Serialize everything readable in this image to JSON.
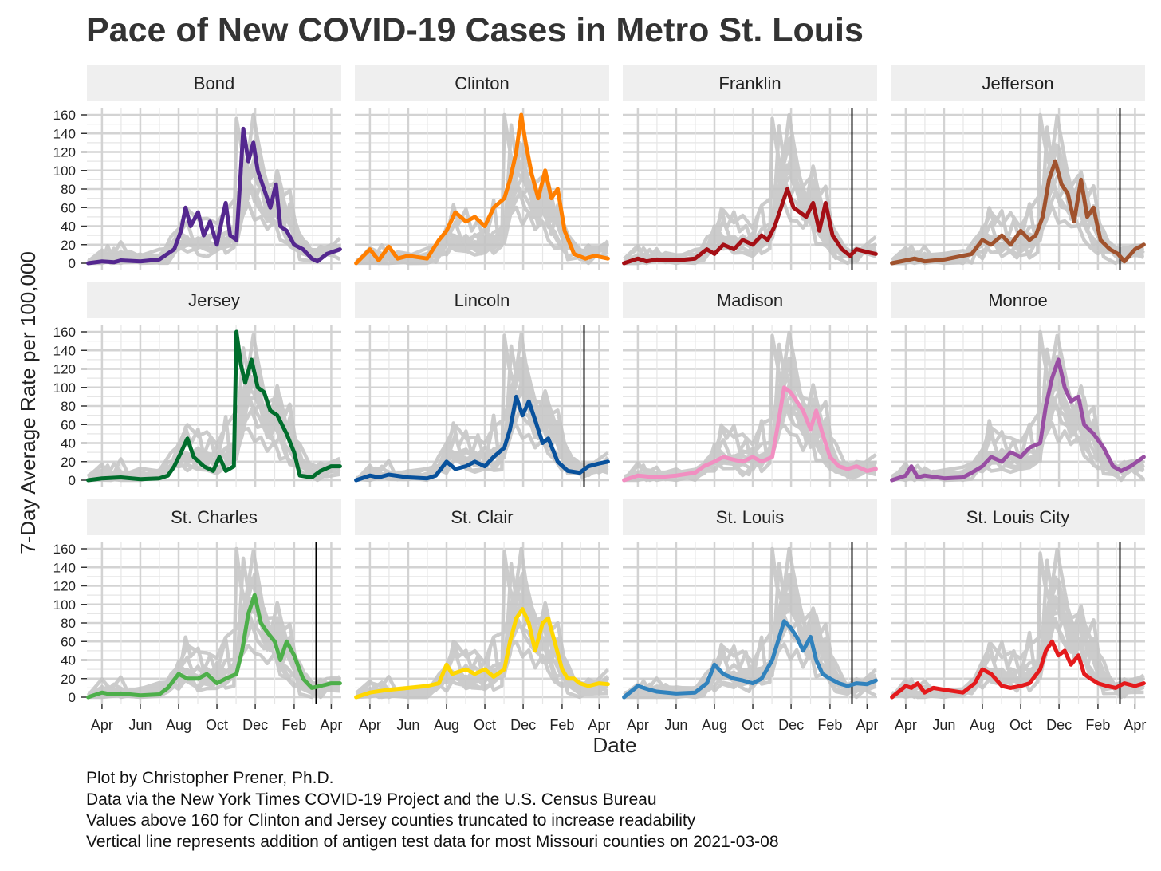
{
  "chart_data": {
    "type": "line",
    "title": "Pace of New COVID-19 Cases in Metro St. Louis",
    "xlabel": "Date",
    "ylabel": "7-Day Average Rate per 100,000",
    "ylim": [
      0,
      160
    ],
    "y_ticks": [
      0,
      20,
      40,
      60,
      80,
      100,
      120,
      140,
      160
    ],
    "x_tick_labels": [
      "Apr",
      "Jun",
      "Aug",
      "Oct",
      "Dec",
      "Feb",
      "Apr"
    ],
    "x_tick_dates": [
      "2020-04-01",
      "2020-06-01",
      "2020-08-01",
      "2020-10-01",
      "2020-12-01",
      "2021-02-01",
      "2021-04-01"
    ],
    "x_range": [
      "2020-03-08",
      "2021-04-17"
    ],
    "antigen_line_date": "2021-03-08",
    "background_series_color": "#c4c4c4",
    "grid": true,
    "facets": [
      {
        "name": "Bond",
        "color": "#54278f",
        "antigen_line": false,
        "x": [
          "2020-03-10",
          "2020-04-01",
          "2020-04-20",
          "2020-05-01",
          "2020-06-01",
          "2020-07-01",
          "2020-07-25",
          "2020-08-05",
          "2020-08-12",
          "2020-08-20",
          "2020-09-01",
          "2020-09-10",
          "2020-09-20",
          "2020-10-01",
          "2020-10-10",
          "2020-10-15",
          "2020-10-22",
          "2020-11-01",
          "2020-11-08",
          "2020-11-12",
          "2020-11-20",
          "2020-11-28",
          "2020-12-05",
          "2020-12-15",
          "2020-12-25",
          "2021-01-03",
          "2021-01-10",
          "2021-01-20",
          "2021-02-01",
          "2021-02-15",
          "2021-03-01",
          "2021-03-10",
          "2021-03-25",
          "2021-04-15"
        ],
        "y": [
          0,
          2,
          1,
          3,
          2,
          4,
          15,
          35,
          60,
          40,
          55,
          30,
          45,
          20,
          50,
          65,
          30,
          25,
          100,
          145,
          110,
          130,
          100,
          80,
          60,
          85,
          40,
          35,
          20,
          15,
          5,
          2,
          10,
          15
        ]
      },
      {
        "name": "Clinton",
        "color": "#ff7f00",
        "antigen_line": false,
        "x": [
          "2020-03-10",
          "2020-04-01",
          "2020-04-15",
          "2020-05-01",
          "2020-05-15",
          "2020-06-01",
          "2020-07-01",
          "2020-07-20",
          "2020-08-01",
          "2020-08-15",
          "2020-09-01",
          "2020-09-15",
          "2020-10-01",
          "2020-10-15",
          "2020-11-01",
          "2020-11-10",
          "2020-11-20",
          "2020-11-28",
          "2020-12-05",
          "2020-12-15",
          "2020-12-25",
          "2021-01-05",
          "2021-01-15",
          "2021-01-25",
          "2021-02-05",
          "2021-02-20",
          "2021-03-10",
          "2021-03-25",
          "2021-04-15"
        ],
        "y": [
          0,
          15,
          3,
          18,
          5,
          8,
          5,
          25,
          35,
          55,
          45,
          50,
          40,
          60,
          70,
          90,
          120,
          160,
          130,
          95,
          70,
          100,
          70,
          80,
          35,
          10,
          5,
          8,
          5
        ]
      },
      {
        "name": "Franklin",
        "color": "#a50f15",
        "antigen_line": true,
        "x": [
          "2020-03-10",
          "2020-04-01",
          "2020-04-15",
          "2020-05-01",
          "2020-06-01",
          "2020-07-01",
          "2020-07-20",
          "2020-08-01",
          "2020-08-15",
          "2020-09-01",
          "2020-09-15",
          "2020-10-01",
          "2020-10-15",
          "2020-10-25",
          "2020-11-05",
          "2020-11-15",
          "2020-11-25",
          "2020-12-05",
          "2020-12-15",
          "2020-12-25",
          "2021-01-05",
          "2021-01-15",
          "2021-01-25",
          "2021-02-05",
          "2021-02-20",
          "2021-03-05",
          "2021-03-15",
          "2021-04-01",
          "2021-04-15"
        ],
        "y": [
          0,
          5,
          2,
          4,
          3,
          5,
          15,
          10,
          20,
          15,
          25,
          20,
          30,
          25,
          40,
          60,
          80,
          60,
          55,
          50,
          65,
          35,
          65,
          30,
          15,
          8,
          15,
          12,
          10
        ]
      },
      {
        "name": "Jefferson",
        "color": "#a0522d",
        "antigen_line": true,
        "x": [
          "2020-03-10",
          "2020-04-01",
          "2020-04-15",
          "2020-05-01",
          "2020-06-01",
          "2020-07-01",
          "2020-07-15",
          "2020-08-01",
          "2020-08-15",
          "2020-09-01",
          "2020-09-15",
          "2020-10-01",
          "2020-10-15",
          "2020-10-25",
          "2020-11-05",
          "2020-11-15",
          "2020-11-25",
          "2020-12-05",
          "2020-12-15",
          "2020-12-25",
          "2021-01-05",
          "2021-01-15",
          "2021-01-25",
          "2021-02-05",
          "2021-02-20",
          "2021-03-05",
          "2021-03-15",
          "2021-04-01",
          "2021-04-15"
        ],
        "y": [
          0,
          3,
          5,
          2,
          4,
          8,
          10,
          25,
          20,
          30,
          20,
          35,
          25,
          30,
          50,
          90,
          110,
          85,
          75,
          45,
          90,
          50,
          60,
          25,
          15,
          10,
          2,
          15,
          20
        ]
      },
      {
        "name": "Jersey",
        "color": "#006d2c",
        "antigen_line": false,
        "x": [
          "2020-03-10",
          "2020-04-01",
          "2020-05-01",
          "2020-06-01",
          "2020-07-01",
          "2020-07-15",
          "2020-07-25",
          "2020-08-05",
          "2020-08-15",
          "2020-08-25",
          "2020-09-10",
          "2020-09-25",
          "2020-10-05",
          "2020-10-15",
          "2020-10-28",
          "2020-11-01",
          "2020-11-08",
          "2020-11-15",
          "2020-11-25",
          "2020-12-05",
          "2020-12-15",
          "2020-12-25",
          "2021-01-05",
          "2021-01-20",
          "2021-02-01",
          "2021-02-10",
          "2021-03-01",
          "2021-03-15",
          "2021-04-01",
          "2021-04-15"
        ],
        "y": [
          0,
          2,
          3,
          1,
          2,
          5,
          15,
          30,
          45,
          25,
          15,
          10,
          25,
          10,
          15,
          160,
          125,
          105,
          130,
          100,
          95,
          75,
          70,
          50,
          30,
          5,
          3,
          10,
          15,
          15
        ]
      },
      {
        "name": "Lincoln",
        "color": "#08519c",
        "antigen_line": true,
        "x": [
          "2020-03-10",
          "2020-04-01",
          "2020-04-15",
          "2020-05-01",
          "2020-06-01",
          "2020-07-01",
          "2020-07-15",
          "2020-08-01",
          "2020-08-15",
          "2020-09-01",
          "2020-09-15",
          "2020-10-01",
          "2020-10-15",
          "2020-11-01",
          "2020-11-10",
          "2020-11-20",
          "2020-11-30",
          "2020-12-10",
          "2020-12-20",
          "2021-01-01",
          "2021-01-10",
          "2021-01-25",
          "2021-02-10",
          "2021-03-01",
          "2021-03-15",
          "2021-04-01",
          "2021-04-15"
        ],
        "y": [
          0,
          5,
          3,
          6,
          3,
          2,
          5,
          20,
          12,
          15,
          20,
          15,
          25,
          35,
          55,
          90,
          70,
          85,
          65,
          40,
          45,
          20,
          10,
          8,
          15,
          18,
          20
        ]
      },
      {
        "name": "Madison",
        "color": "#f18fc1",
        "antigen_line": false,
        "x": [
          "2020-03-10",
          "2020-04-01",
          "2020-05-01",
          "2020-06-01",
          "2020-07-01",
          "2020-07-15",
          "2020-08-01",
          "2020-08-15",
          "2020-09-01",
          "2020-09-15",
          "2020-10-01",
          "2020-10-15",
          "2020-11-01",
          "2020-11-10",
          "2020-11-20",
          "2020-11-30",
          "2020-12-10",
          "2020-12-20",
          "2021-01-01",
          "2021-01-10",
          "2021-01-20",
          "2021-02-01",
          "2021-02-15",
          "2021-03-01",
          "2021-03-15",
          "2021-04-01",
          "2021-04-15"
        ],
        "y": [
          0,
          5,
          3,
          5,
          8,
          15,
          20,
          25,
          22,
          20,
          25,
          20,
          25,
          60,
          100,
          95,
          85,
          75,
          55,
          75,
          50,
          25,
          15,
          12,
          15,
          10,
          12
        ]
      },
      {
        "name": "Monroe",
        "color": "#984ea3",
        "antigen_line": false,
        "x": [
          "2020-03-10",
          "2020-04-01",
          "2020-04-10",
          "2020-04-20",
          "2020-05-01",
          "2020-06-01",
          "2020-07-01",
          "2020-07-15",
          "2020-08-01",
          "2020-08-15",
          "2020-09-01",
          "2020-09-15",
          "2020-10-01",
          "2020-10-15",
          "2020-11-01",
          "2020-11-10",
          "2020-11-20",
          "2020-11-30",
          "2020-12-10",
          "2020-12-20",
          "2021-01-01",
          "2021-01-10",
          "2021-01-25",
          "2021-02-10",
          "2021-02-25",
          "2021-03-10",
          "2021-03-25",
          "2021-04-15"
        ],
        "y": [
          0,
          5,
          15,
          3,
          5,
          2,
          3,
          8,
          15,
          25,
          20,
          30,
          25,
          35,
          40,
          80,
          110,
          130,
          100,
          85,
          90,
          60,
          50,
          35,
          15,
          10,
          15,
          25
        ]
      },
      {
        "name": "St. Charles",
        "color": "#4daf4a",
        "antigen_line": true,
        "x": [
          "2020-03-10",
          "2020-04-01",
          "2020-04-15",
          "2020-05-01",
          "2020-06-01",
          "2020-07-01",
          "2020-07-15",
          "2020-08-01",
          "2020-08-15",
          "2020-09-01",
          "2020-09-15",
          "2020-10-01",
          "2020-10-15",
          "2020-11-01",
          "2020-11-10",
          "2020-11-20",
          "2020-11-30",
          "2020-12-10",
          "2020-12-20",
          "2021-01-01",
          "2021-01-10",
          "2021-01-20",
          "2021-02-01",
          "2021-02-15",
          "2021-03-01",
          "2021-03-15",
          "2021-04-01",
          "2021-04-15"
        ],
        "y": [
          0,
          5,
          3,
          4,
          2,
          3,
          10,
          25,
          20,
          20,
          25,
          15,
          20,
          25,
          50,
          90,
          110,
          80,
          70,
          60,
          40,
          60,
          45,
          20,
          10,
          12,
          15,
          15
        ]
      },
      {
        "name": "St. Clair",
        "color": "#ffd700",
        "antigen_line": false,
        "x": [
          "2020-03-10",
          "2020-04-01",
          "2020-05-01",
          "2020-06-01",
          "2020-07-01",
          "2020-07-20",
          "2020-08-01",
          "2020-08-10",
          "2020-09-01",
          "2020-09-15",
          "2020-10-01",
          "2020-10-15",
          "2020-11-01",
          "2020-11-10",
          "2020-11-20",
          "2020-11-30",
          "2020-12-10",
          "2020-12-20",
          "2021-01-01",
          "2021-01-10",
          "2021-01-20",
          "2021-02-01",
          "2021-02-10",
          "2021-02-20",
          "2021-03-01",
          "2021-03-15",
          "2021-04-01",
          "2021-04-15"
        ],
        "y": [
          0,
          5,
          8,
          10,
          12,
          15,
          35,
          25,
          30,
          25,
          30,
          22,
          30,
          60,
          85,
          95,
          80,
          50,
          80,
          85,
          60,
          30,
          20,
          20,
          15,
          12,
          15,
          14
        ]
      },
      {
        "name": "St. Louis",
        "color": "#3182bd",
        "antigen_line": true,
        "x": [
          "2020-03-10",
          "2020-04-01",
          "2020-04-20",
          "2020-05-01",
          "2020-06-01",
          "2020-07-01",
          "2020-07-20",
          "2020-08-01",
          "2020-08-15",
          "2020-09-01",
          "2020-09-15",
          "2020-10-01",
          "2020-10-15",
          "2020-11-01",
          "2020-11-10",
          "2020-11-20",
          "2020-11-30",
          "2020-12-10",
          "2020-12-20",
          "2021-01-01",
          "2021-01-10",
          "2021-01-20",
          "2021-02-01",
          "2021-02-15",
          "2021-03-01",
          "2021-03-15",
          "2021-04-01",
          "2021-04-15"
        ],
        "y": [
          0,
          12,
          8,
          6,
          4,
          5,
          15,
          35,
          25,
          20,
          18,
          15,
          20,
          40,
          60,
          82,
          75,
          65,
          50,
          65,
          40,
          25,
          20,
          15,
          12,
          15,
          14,
          18
        ]
      },
      {
        "name": "St. Louis City",
        "color": "#e41a1c",
        "antigen_line": true,
        "x": [
          "2020-03-10",
          "2020-04-01",
          "2020-04-10",
          "2020-04-20",
          "2020-05-01",
          "2020-05-15",
          "2020-06-01",
          "2020-07-01",
          "2020-07-20",
          "2020-08-01",
          "2020-08-15",
          "2020-09-01",
          "2020-09-15",
          "2020-10-01",
          "2020-10-15",
          "2020-11-01",
          "2020-11-10",
          "2020-11-20",
          "2020-11-30",
          "2020-12-10",
          "2020-12-20",
          "2021-01-01",
          "2021-01-10",
          "2021-01-20",
          "2021-02-01",
          "2021-02-15",
          "2021-03-01",
          "2021-03-15",
          "2021-04-01",
          "2021-04-15"
        ],
        "y": [
          0,
          12,
          10,
          15,
          5,
          10,
          8,
          5,
          15,
          30,
          25,
          12,
          10,
          12,
          15,
          30,
          50,
          60,
          45,
          50,
          35,
          45,
          25,
          20,
          15,
          12,
          10,
          15,
          12,
          15
        ]
      }
    ],
    "notes": [
      "Plot by Christopher Prener, Ph.D.",
      "Data via the New York Times COVID-19 Project and the U.S. Census Bureau",
      "Values above 160 for Clinton and Jersey counties truncated to increase readability",
      "Vertical line represents addition of antigen test data for most Missouri counties on 2021-03-08"
    ]
  }
}
